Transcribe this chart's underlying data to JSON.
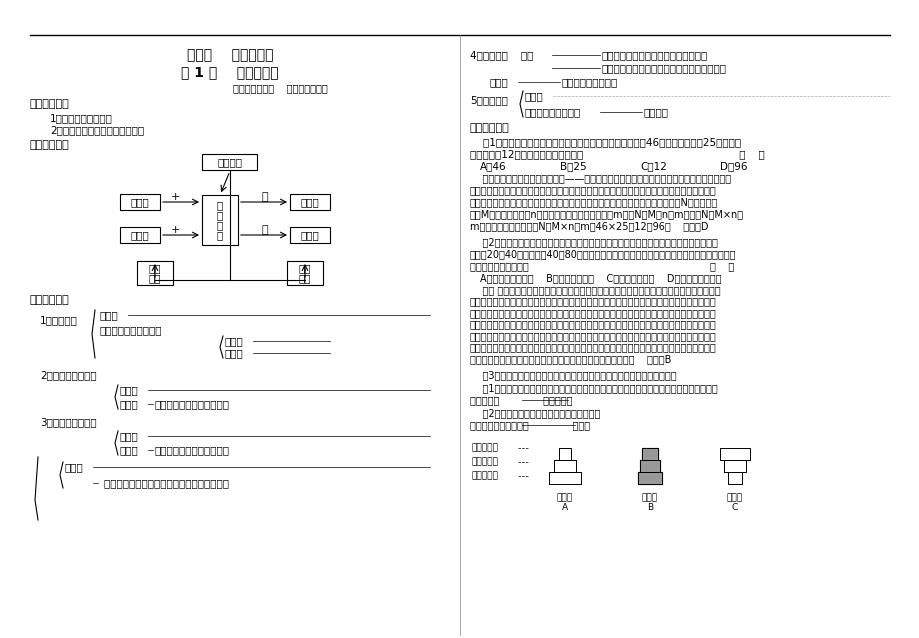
{
  "bg_color": "#ffffff",
  "title_line1": "第四章    种群和群落",
  "title_line2": "第 1 节    种群的特征",
  "author_line": "执笔人：刘德海    核对人：朱春霞"
}
